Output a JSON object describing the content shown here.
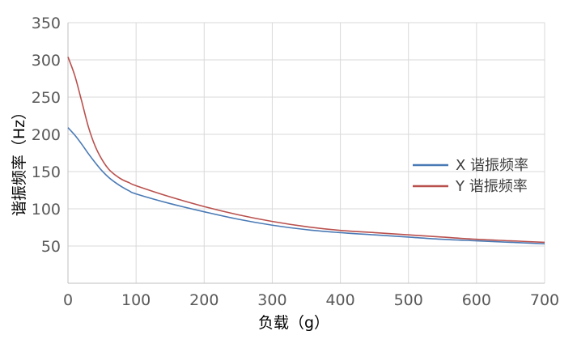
{
  "chart_data": {
    "type": "line",
    "title": "",
    "xlabel": "负载（g）",
    "ylabel": "谐振频率（Hz）",
    "xlim": [
      0,
      700
    ],
    "ylim": [
      0,
      350
    ],
    "x_ticks": [
      "0",
      "100",
      "200",
      "300",
      "400",
      "500",
      "600",
      "700"
    ],
    "y_ticks": [
      "50",
      "100",
      "150",
      "200",
      "250",
      "300",
      "350"
    ],
    "grid": true,
    "legend_position": "right",
    "series": [
      {
        "name": "X 谐振频率",
        "color": "#4a7ab5",
        "x": [
          0,
          10,
          20,
          30,
          40,
          50,
          60,
          70,
          80,
          90,
          100,
          150,
          200,
          250,
          300,
          350,
          400,
          450,
          500,
          550,
          600,
          650,
          700
        ],
        "y": [
          209,
          199,
          187,
          174,
          162,
          151,
          142,
          135,
          129,
          124,
          120,
          107,
          96,
          86,
          78,
          72,
          68,
          65,
          62,
          59,
          57,
          55,
          53
        ]
      },
      {
        "name": "Y 谐振频率",
        "color": "#b9504d",
        "x": [
          0,
          10,
          20,
          30,
          40,
          50,
          60,
          70,
          80,
          90,
          100,
          150,
          200,
          250,
          300,
          350,
          400,
          450,
          500,
          550,
          600,
          650,
          700
        ],
        "y": [
          304,
          279,
          245,
          210,
          184,
          166,
          153,
          145,
          139,
          135,
          131,
          116,
          103,
          92,
          83,
          76,
          71,
          68,
          65,
          62,
          59,
          57,
          55
        ]
      }
    ]
  }
}
